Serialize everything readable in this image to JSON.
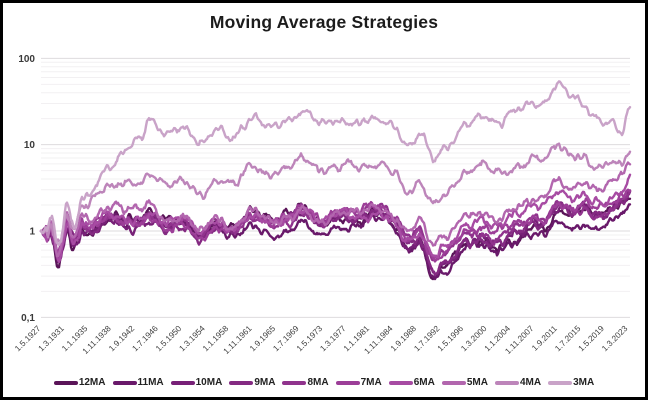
{
  "chart_data": {
    "type": "line",
    "title": "Moving Average Strategies",
    "y_scale": "log",
    "ylim": [
      0.1,
      100
    ],
    "grid": "major+minor-log",
    "legend_position": "bottom",
    "background": "#ffffff",
    "frame_border_color": "#000000",
    "gridline_major_color": "#dedbde",
    "gridline_minor_color": "#f2f0f2",
    "y_ticks": [
      {
        "label": "100",
        "value": 100
      },
      {
        "label": "10",
        "value": 10
      },
      {
        "label": "1",
        "value": 1
      },
      {
        "label": "0,1",
        "value": 0.1
      }
    ],
    "x_tick_labels": [
      "1.5.1927",
      "1.3.1931",
      "1.1.1935",
      "1.11.1938",
      "1.9.1942",
      "1.7.1946",
      "1.5.1950",
      "1.3.1954",
      "1.1.1958",
      "1.11.1961",
      "1.9.1965",
      "1.7.1969",
      "1.5.1973",
      "1.3.1977",
      "1.1.1981",
      "1.11.1984",
      "1.9.1988",
      "1.7.1992",
      "1.5.1996",
      "1.3.2000",
      "1.1.2004",
      "1.11.2007",
      "1.9.2011",
      "1.7.2015",
      "1.5.2019",
      "1.3.2023"
    ],
    "anchor_x": [
      0,
      0.015,
      0.03,
      0.045,
      0.055,
      0.07,
      0.09,
      0.12,
      0.15,
      0.17,
      0.185,
      0.21,
      0.24,
      0.27,
      0.3,
      0.33,
      0.36,
      0.39,
      0.42,
      0.45,
      0.48,
      0.51,
      0.54,
      0.57,
      0.6,
      0.625,
      0.645,
      0.665,
      0.69,
      0.72,
      0.75,
      0.78,
      0.81,
      0.835,
      0.85,
      0.875,
      0.9,
      0.92,
      0.94,
      0.955,
      0.97,
      0.985,
      1.0
    ],
    "series": [
      {
        "name": "12MA",
        "color": "#5a1458",
        "values": [
          1,
          1.05,
          0.52,
          1.45,
          0.8,
          1.3,
          1.17,
          1.3,
          1.2,
          1.36,
          1.45,
          1.17,
          1.36,
          1.14,
          1.38,
          1.22,
          1.45,
          1.26,
          1.38,
          1.6,
          1.14,
          1.38,
          1.2,
          1.38,
          0.96,
          0.58,
          0.7,
          0.33,
          0.42,
          0.53,
          0.66,
          0.6,
          0.78,
          1.0,
          0.85,
          1.15,
          1.03,
          1.25,
          1.1,
          1.03,
          1.25,
          1.48,
          1.9
        ]
      },
      {
        "name": "11MA",
        "color": "#69196a",
        "values": [
          1,
          1.08,
          0.54,
          1.5,
          0.82,
          1.35,
          1.2,
          1.35,
          1.23,
          1.4,
          1.5,
          1.2,
          1.4,
          1.17,
          1.42,
          1.26,
          1.5,
          1.3,
          1.42,
          1.65,
          1.17,
          1.42,
          1.25,
          1.42,
          1.0,
          0.62,
          0.75,
          0.36,
          0.45,
          0.57,
          0.7,
          0.65,
          0.84,
          1.05,
          0.9,
          1.22,
          1.1,
          1.32,
          1.17,
          1.1,
          1.32,
          1.55,
          2.05
        ]
      },
      {
        "name": "10MA",
        "color": "#772077",
        "values": [
          1,
          1.1,
          0.55,
          1.55,
          0.83,
          1.38,
          1.22,
          1.38,
          1.26,
          1.43,
          1.55,
          1.24,
          1.43,
          1.2,
          1.46,
          1.3,
          1.55,
          1.33,
          1.46,
          1.7,
          1.2,
          1.46,
          1.28,
          1.46,
          1.05,
          0.66,
          0.8,
          0.4,
          0.5,
          0.62,
          0.76,
          0.7,
          0.9,
          1.12,
          0.95,
          1.3,
          1.16,
          1.4,
          1.24,
          1.16,
          1.4,
          1.65,
          2.2
        ]
      },
      {
        "name": "9MA",
        "color": "#842a82",
        "values": [
          1,
          1.12,
          0.57,
          1.6,
          0.85,
          1.42,
          1.25,
          1.42,
          1.3,
          1.47,
          1.6,
          1.28,
          1.47,
          1.24,
          1.5,
          1.33,
          1.6,
          1.37,
          1.5,
          1.75,
          1.24,
          1.5,
          1.32,
          1.5,
          1.1,
          0.72,
          0.88,
          0.45,
          0.55,
          0.68,
          0.82,
          0.76,
          0.98,
          1.2,
          1.02,
          1.4,
          1.25,
          1.5,
          1.32,
          1.24,
          1.5,
          1.75,
          2.35
        ]
      },
      {
        "name": "8MA",
        "color": "#90338d",
        "values": [
          1,
          1.15,
          0.58,
          1.65,
          0.88,
          1.45,
          1.28,
          1.45,
          1.33,
          1.5,
          1.65,
          1.3,
          1.5,
          1.27,
          1.55,
          1.37,
          1.65,
          1.4,
          1.55,
          1.8,
          1.27,
          1.55,
          1.35,
          1.55,
          1.15,
          0.78,
          0.95,
          0.52,
          0.62,
          0.75,
          0.9,
          0.83,
          1.05,
          1.3,
          1.1,
          1.5,
          1.33,
          1.6,
          1.4,
          1.3,
          1.6,
          1.85,
          2.5
        ]
      },
      {
        "name": "7MA",
        "color": "#9c3e98",
        "values": [
          1,
          1.18,
          0.6,
          1.7,
          0.9,
          1.5,
          1.3,
          1.5,
          1.38,
          1.55,
          1.7,
          1.35,
          1.55,
          1.3,
          1.6,
          1.4,
          1.7,
          1.45,
          1.6,
          1.85,
          1.3,
          1.6,
          1.4,
          1.6,
          1.2,
          0.85,
          1.05,
          0.6,
          0.72,
          0.85,
          1.0,
          0.92,
          1.15,
          1.4,
          1.2,
          1.6,
          1.42,
          1.7,
          1.5,
          1.4,
          1.7,
          1.95,
          2.7
        ]
      },
      {
        "name": "6MA",
        "color": "#a74ba3",
        "values": [
          1,
          1.2,
          0.62,
          1.75,
          0.92,
          1.55,
          1.35,
          1.55,
          1.4,
          1.6,
          1.75,
          1.4,
          1.6,
          1.35,
          1.65,
          1.45,
          1.75,
          1.5,
          1.65,
          1.9,
          1.35,
          1.65,
          1.45,
          1.65,
          1.25,
          0.9,
          1.1,
          0.68,
          0.8,
          0.95,
          1.1,
          1.0,
          1.25,
          1.5,
          1.3,
          1.75,
          1.55,
          1.85,
          1.6,
          1.5,
          1.85,
          2.1,
          3.0
        ]
      },
      {
        "name": "5MA",
        "color": "#b266ae",
        "values": [
          1,
          1.25,
          0.65,
          1.8,
          0.95,
          1.6,
          1.4,
          1.6,
          1.5,
          1.7,
          1.9,
          1.5,
          1.7,
          1.45,
          1.8,
          1.55,
          1.9,
          1.6,
          1.8,
          2.1,
          1.5,
          1.8,
          1.6,
          1.8,
          1.4,
          1.0,
          1.25,
          0.8,
          1.0,
          1.3,
          1.6,
          1.4,
          1.8,
          2.2,
          1.9,
          2.6,
          2.3,
          2.8,
          2.4,
          2.2,
          2.9,
          3.2,
          4.6
        ]
      },
      {
        "name": "4MA",
        "color": "#bd85ba",
        "values": [
          1,
          1.3,
          0.7,
          2.0,
          1.1,
          2.2,
          2.6,
          3.2,
          3.8,
          4.4,
          5.2,
          4.2,
          4.8,
          4.0,
          5.2,
          4.4,
          5.6,
          4.6,
          5.2,
          6.2,
          4.4,
          5.2,
          4.5,
          5.0,
          3.8,
          2.9,
          3.6,
          2.5,
          3.2,
          4.0,
          5.0,
          4.3,
          5.5,
          6.8,
          5.8,
          7.8,
          6.5,
          7.2,
          6.0,
          5.3,
          6.2,
          5.5,
          8.2
        ]
      },
      {
        "name": "3MA",
        "color": "#c9a3c8",
        "values": [
          1,
          1.4,
          0.75,
          2.3,
          1.2,
          2.8,
          3.8,
          5.5,
          9,
          13,
          21,
          16,
          19,
          16,
          22,
          18,
          23,
          19,
          22,
          25,
          17,
          20,
          17,
          19,
          14,
          9.5,
          12,
          7.5,
          10,
          14,
          19,
          16,
          22,
          28,
          24,
          33,
          26,
          21,
          16,
          12.5,
          14,
          11,
          20
        ]
      }
    ]
  }
}
